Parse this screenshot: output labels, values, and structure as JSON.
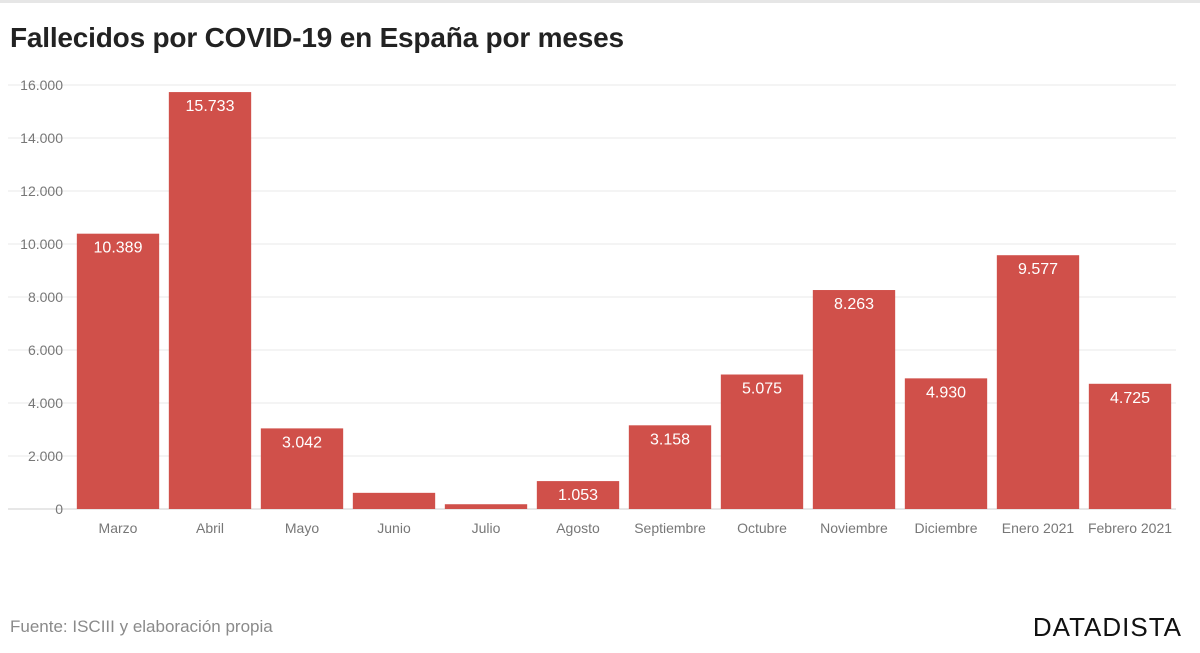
{
  "header": {
    "title": "Fallecidos por COVID-19 en España por meses"
  },
  "footer": {
    "source": "Fuente: ISCIII y elaboración propia",
    "brand": "DATADISTA"
  },
  "colors": {
    "bar": "#d0504a",
    "grid": "#e8e8e8",
    "tick_label": "#777777",
    "value_label": "#ffffff"
  },
  "chart_data": {
    "type": "bar",
    "title": "Fallecidos por COVID-19 en España por meses",
    "xlabel": "",
    "ylabel": "",
    "categories": [
      "Marzo",
      "Abril",
      "Mayo",
      "Junio",
      "Julio",
      "Agosto",
      "Septiembre",
      "Octubre",
      "Noviembre",
      "Diciembre",
      "Enero 2021",
      "Febrero 2021"
    ],
    "values": [
      10389,
      15733,
      3042,
      610,
      180,
      1053,
      3158,
      5075,
      8263,
      4930,
      9577,
      4725
    ],
    "value_labels": [
      "10.389",
      "15.733",
      "3.042",
      "",
      "",
      "1.053",
      "3.158",
      "5.075",
      "8.263",
      "4.930",
      "9.577",
      "4.725"
    ],
    "ylim": [
      0,
      16000
    ],
    "yticks": [
      0,
      2000,
      4000,
      6000,
      8000,
      10000,
      12000,
      14000,
      16000
    ],
    "ytick_labels": [
      "0",
      "2.000",
      "4.000",
      "6.000",
      "8.000",
      "10.000",
      "12.000",
      "14.000",
      "16.000"
    ],
    "grid": true,
    "legend": "none"
  }
}
